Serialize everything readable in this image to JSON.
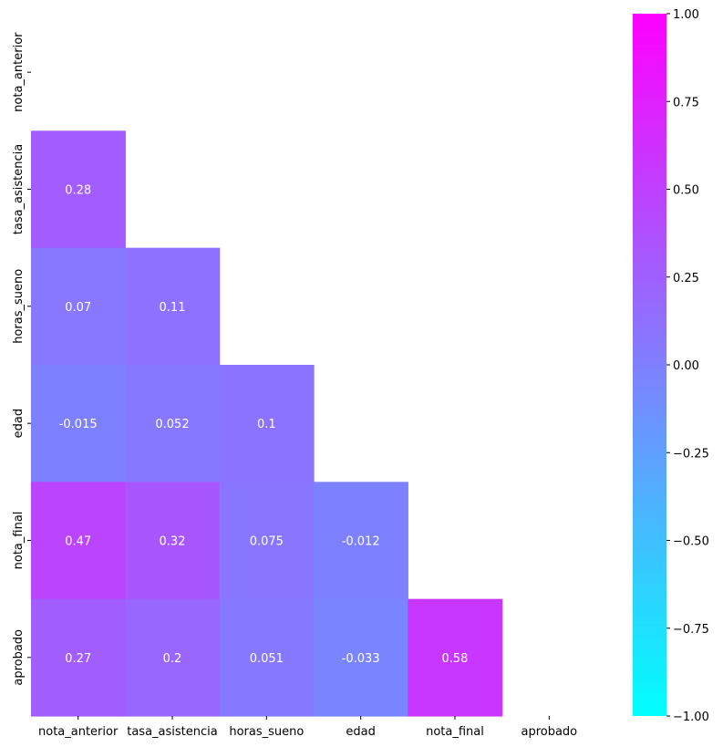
{
  "chart_data": {
    "type": "heatmap",
    "mask": "upper-triangle",
    "x_categories": [
      "nota_anterior",
      "tasa_asistencia",
      "horas_sueno",
      "edad",
      "nota_final",
      "aprobado"
    ],
    "y_categories": [
      "nota_anterior",
      "tasa_asistencia",
      "horas_sueno",
      "edad",
      "nota_final",
      "aprobado"
    ],
    "cells": [
      {
        "row": 1,
        "col": 0,
        "value": 0.28,
        "label": "0.28"
      },
      {
        "row": 2,
        "col": 0,
        "value": 0.07,
        "label": "0.07"
      },
      {
        "row": 2,
        "col": 1,
        "value": 0.11,
        "label": "0.11"
      },
      {
        "row": 3,
        "col": 0,
        "value": -0.015,
        "label": "-0.015"
      },
      {
        "row": 3,
        "col": 1,
        "value": 0.052,
        "label": "0.052"
      },
      {
        "row": 3,
        "col": 2,
        "value": 0.1,
        "label": "0.1"
      },
      {
        "row": 4,
        "col": 0,
        "value": 0.47,
        "label": "0.47"
      },
      {
        "row": 4,
        "col": 1,
        "value": 0.32,
        "label": "0.32"
      },
      {
        "row": 4,
        "col": 2,
        "value": 0.075,
        "label": "0.075"
      },
      {
        "row": 4,
        "col": 3,
        "value": -0.012,
        "label": "-0.012"
      },
      {
        "row": 5,
        "col": 0,
        "value": 0.27,
        "label": "0.27"
      },
      {
        "row": 5,
        "col": 1,
        "value": 0.2,
        "label": "0.2"
      },
      {
        "row": 5,
        "col": 2,
        "value": 0.051,
        "label": "0.051"
      },
      {
        "row": 5,
        "col": 3,
        "value": -0.033,
        "label": "-0.033"
      },
      {
        "row": 5,
        "col": 4,
        "value": 0.58,
        "label": "0.58"
      }
    ],
    "colorbar": {
      "colormap": "cool",
      "range": [
        -1,
        1
      ],
      "ticks": [
        1.0,
        0.75,
        0.5,
        0.25,
        0.0,
        -0.25,
        -0.5,
        -0.75,
        -1.0
      ],
      "tick_labels": [
        "1.00",
        "0.75",
        "0.50",
        "0.25",
        "0.00",
        "−0.25",
        "−0.50",
        "−0.75",
        "−1.00"
      ]
    }
  },
  "colors": {
    "cmap_low": "#00ffff",
    "cmap_high": "#ff00ff",
    "cell_text": "#ffffff",
    "tick_text": "#000000"
  }
}
